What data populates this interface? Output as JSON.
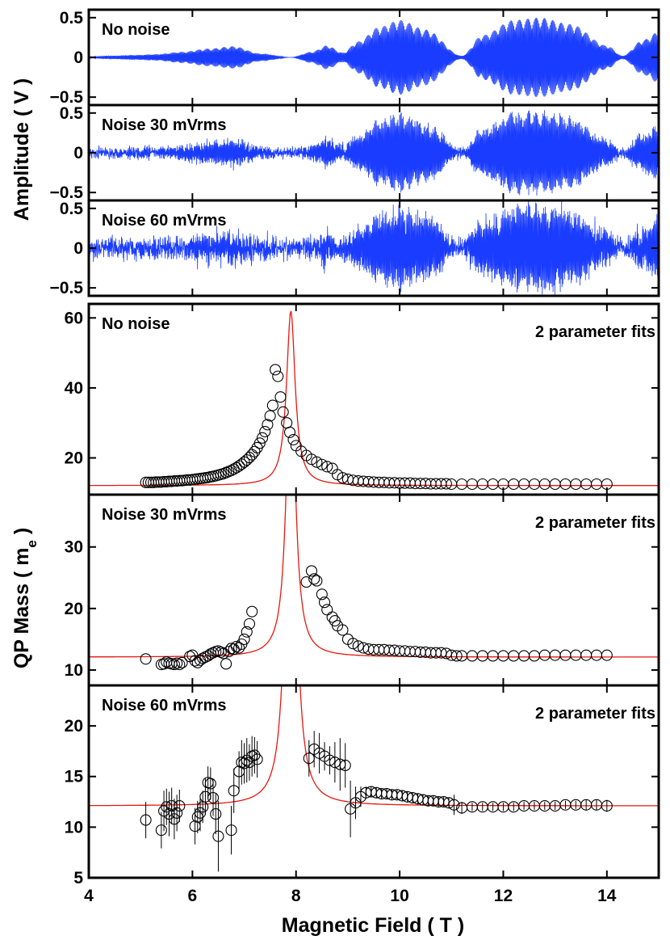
{
  "chart_data": [
    {
      "panel": "signal-no-noise",
      "type": "line",
      "title": "No noise",
      "xlim": [
        4,
        15
      ],
      "ylim": [
        -0.6,
        0.6
      ],
      "yticks": [
        0.5,
        0,
        -0.5
      ],
      "ytick_labels": [
        "0.5",
        "0",
        "−0.5"
      ],
      "series": [
        {
          "name": "Amplitude",
          "color": "#1a3cff",
          "noise_mVrms": 0
        }
      ]
    },
    {
      "panel": "signal-noise-30",
      "type": "line",
      "title": "Noise 30 mVrms",
      "xlim": [
        4,
        15
      ],
      "ylim": [
        -0.6,
        0.6
      ],
      "yticks": [
        0.5,
        0,
        -0.5
      ],
      "ytick_labels": [
        "0.5",
        "0",
        "−0.5"
      ],
      "series": [
        {
          "name": "Amplitude",
          "color": "#1a3cff",
          "noise_mVrms": 30
        }
      ]
    },
    {
      "panel": "signal-noise-60",
      "type": "line",
      "title": "Noise 60 mVrms",
      "xlim": [
        4,
        15
      ],
      "ylim": [
        -0.6,
        0.6
      ],
      "yticks": [
        0.5,
        0,
        -0.5
      ],
      "ytick_labels": [
        "0.5",
        "0",
        "−0.5"
      ],
      "series": [
        {
          "name": "Amplitude",
          "color": "#1a3cff",
          "noise_mVrms": 60
        }
      ]
    },
    {
      "panel": "mass-no-noise",
      "type": "scatter",
      "title": "No noise",
      "annotation": "2 parameter fits",
      "xlim": [
        4,
        15
      ],
      "ylim": [
        9.5,
        64
      ],
      "yticks": [
        20,
        40,
        60
      ],
      "ytick_labels": [
        "20",
        "40",
        "60"
      ],
      "fit": {
        "color": "#e8170f",
        "base": 12.1,
        "amp": 5.0,
        "center": 7.9,
        "width": 0.1
      },
      "points": {
        "x": [
          5.1,
          5.15,
          5.2,
          5.25,
          5.3,
          5.35,
          5.4,
          5.45,
          5.5,
          5.55,
          5.6,
          5.65,
          5.7,
          5.75,
          5.8,
          5.85,
          5.9,
          5.95,
          6.0,
          6.05,
          6.1,
          6.15,
          6.2,
          6.25,
          6.3,
          6.35,
          6.4,
          6.45,
          6.5,
          6.55,
          6.6,
          6.65,
          6.7,
          6.75,
          6.8,
          6.85,
          6.9,
          6.95,
          7.0,
          7.05,
          7.1,
          7.15,
          7.2,
          7.25,
          7.3,
          7.35,
          7.4,
          7.45,
          7.5,
          7.55,
          7.6,
          7.65,
          7.7,
          7.75,
          7.82,
          7.88,
          7.95,
          8.0,
          8.1,
          8.2,
          8.3,
          8.4,
          8.5,
          8.6,
          8.7,
          8.8,
          8.9,
          9.0,
          9.1,
          9.2,
          9.3,
          9.4,
          9.5,
          9.6,
          9.7,
          9.8,
          9.9,
          10.0,
          10.1,
          10.2,
          10.3,
          10.4,
          10.5,
          10.6,
          10.7,
          10.8,
          10.9,
          11.0,
          11.2,
          11.4,
          11.6,
          11.8,
          12.0,
          12.2,
          12.4,
          12.6,
          12.8,
          13.0,
          13.2,
          13.4,
          13.6,
          13.8,
          14.0
        ],
        "y": [
          13.0,
          13.0,
          13.0,
          13.0,
          13.1,
          13.1,
          13.1,
          13.2,
          13.2,
          13.3,
          13.3,
          13.4,
          13.4,
          13.5,
          13.5,
          13.6,
          13.7,
          13.7,
          13.8,
          13.9,
          14.0,
          14.1,
          14.2,
          14.3,
          14.4,
          14.6,
          14.7,
          14.9,
          15.1,
          15.3,
          15.5,
          15.8,
          16.1,
          16.4,
          16.8,
          17.2,
          17.7,
          18.2,
          18.8,
          19.4,
          20.1,
          20.9,
          21.8,
          22.9,
          24.2,
          25.7,
          27.5,
          29.5,
          32.0,
          35.0,
          45.2,
          43.3,
          37.4,
          33.1,
          30.0,
          27.3,
          25.2,
          23.5,
          21.9,
          20.7,
          19.6,
          18.8,
          18.1,
          17.5,
          17.0,
          15.2,
          14.3,
          13.9,
          13.6,
          13.4,
          13.3,
          13.2,
          13.1,
          13.0,
          13.0,
          12.9,
          12.9,
          12.8,
          12.8,
          12.8,
          12.7,
          12.7,
          12.7,
          12.6,
          12.6,
          12.6,
          12.6,
          12.5,
          12.5,
          12.5,
          12.5,
          12.5,
          12.5,
          12.5,
          12.5,
          12.5,
          12.5,
          12.5,
          12.5,
          12.5,
          12.5,
          12.5,
          12.5
        ]
      }
    },
    {
      "panel": "mass-noise-30",
      "type": "scatter",
      "title": "Noise 30 mVrms",
      "annotation": "2 parameter fits",
      "xlim": [
        4,
        15
      ],
      "ylim": [
        7.5,
        38.5
      ],
      "yticks": [
        10,
        20,
        30
      ],
      "ytick_labels": [
        "10",
        "20",
        "30"
      ],
      "fit": {
        "color": "#e8170f",
        "base": 12.1,
        "amp": 5.0,
        "center": 7.9,
        "width": 0.1
      },
      "points": {
        "x": [
          5.1,
          5.4,
          5.45,
          5.5,
          5.55,
          5.6,
          5.65,
          5.7,
          5.75,
          5.8,
          5.95,
          6.0,
          6.05,
          6.1,
          6.15,
          6.2,
          6.25,
          6.3,
          6.35,
          6.4,
          6.45,
          6.5,
          6.55,
          6.6,
          6.65,
          6.7,
          6.75,
          6.8,
          6.85,
          6.9,
          6.95,
          7.0,
          7.05,
          7.1,
          7.15,
          8.2,
          8.3,
          8.35,
          8.4,
          8.5,
          8.55,
          8.6,
          8.7,
          8.75,
          8.8,
          8.9,
          9.0,
          9.1,
          9.2,
          9.3,
          9.4,
          9.5,
          9.6,
          9.7,
          9.8,
          9.9,
          10.0,
          10.1,
          10.2,
          10.3,
          10.4,
          10.5,
          10.6,
          10.7,
          10.8,
          10.9,
          11.0,
          11.1,
          11.2,
          11.4,
          11.6,
          11.8,
          12.0,
          12.2,
          12.4,
          12.6,
          12.8,
          13.0,
          13.2,
          13.4,
          13.6,
          13.8,
          14.0
        ],
        "y": [
          11.8,
          10.9,
          11.0,
          11.3,
          11.1,
          11.0,
          10.9,
          11.1,
          10.9,
          11.2,
          12.2,
          12.4,
          11.5,
          11.2,
          11.6,
          11.9,
          12.1,
          12.3,
          12.6,
          12.8,
          13.0,
          13.1,
          12.9,
          12.7,
          11.0,
          13.0,
          13.5,
          13.4,
          13.8,
          13.6,
          14.2,
          15.0,
          16.2,
          17.5,
          19.5,
          24.3,
          26.1,
          24.8,
          24.5,
          22.3,
          21.0,
          19.8,
          18.6,
          18.0,
          17.2,
          16.5,
          15.0,
          14.3,
          13.9,
          13.6,
          13.4,
          13.3,
          13.3,
          13.3,
          13.2,
          13.2,
          13.1,
          13.1,
          13.0,
          13.0,
          12.9,
          12.9,
          12.8,
          12.8,
          12.8,
          12.7,
          12.4,
          12.3,
          12.3,
          12.3,
          12.3,
          12.3,
          12.3,
          12.3,
          12.3,
          12.3,
          12.4,
          12.4,
          12.4,
          12.4,
          12.4,
          12.4,
          12.4
        ]
      }
    },
    {
      "panel": "mass-noise-60",
      "type": "scatter",
      "title": "Noise 60 mVrms",
      "annotation": "2 parameter fits",
      "xlim": [
        4,
        15
      ],
      "ylim": [
        5,
        24
      ],
      "yticks": [
        5,
        10,
        15,
        20
      ],
      "ytick_labels": [
        "5",
        "10",
        "15",
        "20"
      ],
      "fit": {
        "color": "#e8170f",
        "base": 12.1,
        "amp": 5.0,
        "center": 7.9,
        "width": 0.1
      },
      "points": {
        "x": [
          5.1,
          5.4,
          5.45,
          5.5,
          5.55,
          5.6,
          5.65,
          5.7,
          5.75,
          6.05,
          6.1,
          6.15,
          6.2,
          6.25,
          6.3,
          6.35,
          6.4,
          6.45,
          6.5,
          6.75,
          6.8,
          6.9,
          6.95,
          7.0,
          7.05,
          7.1,
          7.15,
          7.2,
          7.25,
          8.25,
          8.35,
          8.45,
          8.55,
          8.65,
          8.75,
          8.85,
          8.95,
          9.05,
          9.15,
          9.25,
          9.35,
          9.45,
          9.55,
          9.65,
          9.75,
          9.85,
          9.95,
          10.05,
          10.15,
          10.25,
          10.35,
          10.45,
          10.55,
          10.65,
          10.75,
          10.85,
          10.95,
          11.05,
          11.2,
          11.4,
          11.6,
          11.8,
          12.0,
          12.2,
          12.4,
          12.6,
          12.8,
          13.0,
          13.2,
          13.4,
          13.6,
          13.8,
          14.0
        ],
        "y": [
          10.7,
          9.7,
          11.6,
          12.0,
          11.3,
          12.1,
          10.8,
          11.4,
          12.1,
          10.1,
          11.0,
          11.4,
          12.0,
          13.0,
          14.4,
          14.3,
          12.9,
          11.3,
          9.1,
          9.7,
          13.6,
          15.5,
          16.4,
          16.3,
          16.6,
          16.4,
          17.0,
          17.1,
          16.7,
          16.8,
          17.7,
          17.3,
          17.0,
          16.6,
          16.4,
          16.2,
          16.1,
          11.8,
          12.4,
          13.0,
          13.4,
          13.5,
          13.4,
          13.3,
          13.3,
          13.2,
          13.2,
          13.1,
          13.0,
          12.9,
          12.8,
          12.7,
          12.6,
          12.6,
          12.5,
          12.5,
          12.4,
          12.2,
          11.9,
          12.0,
          12.0,
          12.0,
          12.0,
          12.0,
          12.1,
          12.1,
          12.1,
          12.1,
          12.2,
          12.2,
          12.2,
          12.2,
          12.1
        ],
        "err": [
          1.8,
          1.8,
          2.0,
          1.8,
          2.2,
          1.8,
          2.0,
          1.8,
          1.6,
          1.8,
          1.6,
          1.8,
          1.6,
          1.8,
          1.6,
          1.6,
          1.8,
          2.0,
          3.5,
          2.4,
          2.2,
          2.0,
          2.2,
          2.0,
          2.2,
          1.8,
          2.0,
          1.8,
          1.8,
          1.8,
          1.8,
          2.0,
          1.4,
          1.4,
          2.0,
          2.6,
          2.2,
          2.8,
          1.6,
          1.0,
          0.6,
          0.5,
          0.5,
          0.5,
          0.5,
          0.5,
          0.5,
          0.5,
          0.5,
          0.5,
          0.5,
          0.5,
          0.5,
          0.5,
          0.5,
          0.5,
          0.5,
          1.0,
          0.6,
          0.4,
          0.4,
          0.4,
          0.4,
          0.4,
          0.4,
          0.4,
          0.4,
          0.4,
          0.4,
          0.4,
          0.5,
          0.5,
          0.6
        ]
      }
    }
  ],
  "axes": {
    "xlabel": "Magnetic Field ( T )",
    "xticks": [
      4,
      6,
      8,
      10,
      12,
      14
    ],
    "xtick_labels": [
      "4",
      "6",
      "8",
      "10",
      "12",
      "14"
    ],
    "top_ylabel": "Amplitude ( V )",
    "bottom_ylabel_main": "QP Mass ( m",
    "bottom_ylabel_sub": "e",
    "bottom_ylabel_end": " )"
  }
}
